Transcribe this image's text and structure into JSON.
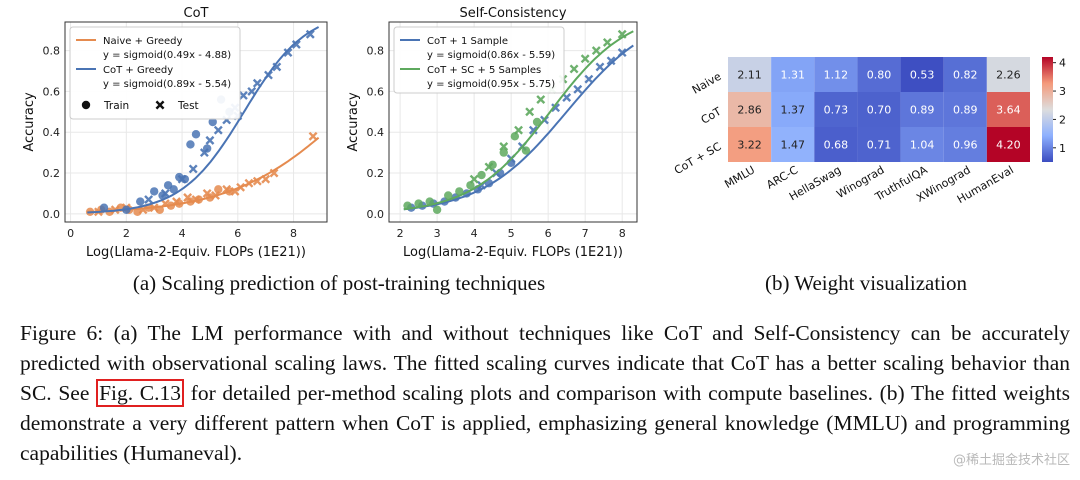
{
  "chart_data": [
    {
      "type": "scatter",
      "title": "CoT",
      "xlabel": "Log(Llama-2-Equiv. FLOPs (1E21))",
      "ylabel": "Accuracy",
      "xlim": [
        -0.2,
        9.2
      ],
      "ylim": [
        -0.04,
        0.94
      ],
      "xticks": [
        0,
        2,
        4,
        6,
        8
      ],
      "yticks": [
        0.0,
        0.2,
        0.4,
        0.6,
        0.8
      ],
      "legend_position": "top-left",
      "marker_legend": {
        "train": "Train",
        "test": "Test"
      },
      "series": [
        {
          "name": "Naive + Greedy",
          "fit_label": "y = sigmoid(0.49x - 4.88)",
          "color": "#e58b4f",
          "fit": {
            "a": 0.49,
            "b": -4.88,
            "x": [
              0.6,
              8.9
            ]
          },
          "train": [
            [
              0.7,
              0.01
            ],
            [
              1.1,
              0.02
            ],
            [
              1.4,
              0.01
            ],
            [
              1.8,
              0.03
            ],
            [
              2.1,
              0.02
            ],
            [
              2.4,
              0.01
            ],
            [
              2.8,
              0.03
            ],
            [
              3.2,
              0.02
            ],
            [
              3.6,
              0.04
            ],
            [
              3.9,
              0.05
            ],
            [
              4.3,
              0.06
            ],
            [
              4.6,
              0.07
            ],
            [
              5.0,
              0.08
            ],
            [
              5.3,
              0.12
            ],
            [
              5.7,
              0.11
            ]
          ],
          "test": [
            [
              1.0,
              0.01
            ],
            [
              1.6,
              0.02
            ],
            [
              2.0,
              0.03
            ],
            [
              2.6,
              0.02
            ],
            [
              3.0,
              0.03
            ],
            [
              3.4,
              0.05
            ],
            [
              3.8,
              0.06
            ],
            [
              4.2,
              0.08
            ],
            [
              4.5,
              0.07
            ],
            [
              4.9,
              0.1
            ],
            [
              5.2,
              0.09
            ],
            [
              5.6,
              0.12
            ],
            [
              5.9,
              0.11
            ],
            [
              6.1,
              0.13
            ],
            [
              6.4,
              0.15
            ],
            [
              6.7,
              0.16
            ],
            [
              7.0,
              0.17
            ],
            [
              7.3,
              0.2
            ],
            [
              8.7,
              0.38
            ]
          ]
        },
        {
          "name": "CoT + Greedy",
          "fit_label": "y = sigmoid(0.89x - 5.54)",
          "color": "#4a74b4",
          "fit": {
            "a": 0.89,
            "b": -5.54,
            "x": [
              0.6,
              8.9
            ]
          },
          "train": [
            [
              1.2,
              0.03
            ],
            [
              2.0,
              0.02
            ],
            [
              2.5,
              0.06
            ],
            [
              3.0,
              0.11
            ],
            [
              3.3,
              0.09
            ],
            [
              3.5,
              0.14
            ],
            [
              3.7,
              0.12
            ],
            [
              3.9,
              0.18
            ],
            [
              4.1,
              0.17
            ],
            [
              4.3,
              0.34
            ],
            [
              4.5,
              0.39
            ],
            [
              4.9,
              0.32
            ],
            [
              5.1,
              0.45
            ],
            [
              5.4,
              0.56
            ],
            [
              5.7,
              0.5
            ]
          ],
          "test": [
            [
              2.8,
              0.07
            ],
            [
              3.4,
              0.1
            ],
            [
              4.0,
              0.17
            ],
            [
              4.4,
              0.22
            ],
            [
              4.8,
              0.3
            ],
            [
              5.0,
              0.36
            ],
            [
              5.3,
              0.41
            ],
            [
              5.6,
              0.46
            ],
            [
              5.9,
              0.52
            ],
            [
              6.0,
              0.48
            ],
            [
              6.2,
              0.58
            ],
            [
              6.5,
              0.6
            ],
            [
              6.7,
              0.64
            ],
            [
              7.1,
              0.68
            ],
            [
              7.4,
              0.72
            ],
            [
              7.8,
              0.79
            ],
            [
              8.1,
              0.83
            ],
            [
              8.6,
              0.88
            ]
          ]
        }
      ]
    },
    {
      "type": "scatter",
      "title": "Self-Consistency",
      "xlabel": "Log(Llama-2-Equiv. FLOPs (1E21))",
      "ylabel": "Accuracy",
      "xlim": [
        1.7,
        8.4
      ],
      "ylim": [
        -0.04,
        0.94
      ],
      "xticks": [
        2,
        3,
        4,
        5,
        6,
        7,
        8
      ],
      "yticks": [
        0.0,
        0.2,
        0.4,
        0.6,
        0.8
      ],
      "legend_position": "top-left",
      "series": [
        {
          "name": "CoT + 1 Sample",
          "fit_label": "y = sigmoid(0.86x - 5.59)",
          "color": "#4a74b4",
          "fit": {
            "a": 0.86,
            "b": -5.59,
            "x": [
              2.1,
              8.3
            ]
          },
          "train": [
            [
              2.3,
              0.03
            ],
            [
              2.6,
              0.04
            ],
            [
              2.9,
              0.05
            ],
            [
              3.2,
              0.06
            ],
            [
              3.5,
              0.08
            ],
            [
              3.8,
              0.1
            ],
            [
              4.1,
              0.12
            ],
            [
              4.4,
              0.15
            ],
            [
              4.7,
              0.2
            ],
            [
              5.0,
              0.25
            ]
          ],
          "test": [
            [
              4.2,
              0.14
            ],
            [
              4.6,
              0.2
            ],
            [
              5.0,
              0.27
            ],
            [
              5.3,
              0.33
            ],
            [
              5.6,
              0.41
            ],
            [
              5.9,
              0.46
            ],
            [
              6.2,
              0.52
            ],
            [
              6.5,
              0.57
            ],
            [
              6.8,
              0.61
            ],
            [
              7.1,
              0.66
            ],
            [
              7.4,
              0.72
            ],
            [
              7.7,
              0.75
            ],
            [
              8.0,
              0.79
            ]
          ]
        },
        {
          "name": "CoT + SC + 5 Samples",
          "fit_label": "y = sigmoid(0.95x - 5.75)",
          "color": "#5ea95e",
          "fit": {
            "a": 0.95,
            "b": -5.75,
            "x": [
              2.1,
              8.3
            ]
          },
          "train": [
            [
              2.2,
              0.04
            ],
            [
              2.5,
              0.05
            ],
            [
              2.8,
              0.06
            ],
            [
              3.0,
              0.02
            ],
            [
              3.3,
              0.09
            ],
            [
              3.6,
              0.11
            ],
            [
              3.9,
              0.14
            ],
            [
              4.2,
              0.19
            ],
            [
              4.5,
              0.24
            ],
            [
              4.8,
              0.3
            ],
            [
              5.1,
              0.38
            ],
            [
              5.4,
              0.31
            ],
            [
              5.7,
              0.45
            ]
          ],
          "test": [
            [
              4.0,
              0.17
            ],
            [
              4.4,
              0.23
            ],
            [
              4.8,
              0.33
            ],
            [
              5.2,
              0.41
            ],
            [
              5.5,
              0.5
            ],
            [
              5.8,
              0.56
            ],
            [
              6.1,
              0.61
            ],
            [
              6.4,
              0.66
            ],
            [
              6.7,
              0.71
            ],
            [
              7.0,
              0.76
            ],
            [
              7.3,
              0.8
            ],
            [
              7.6,
              0.84
            ],
            [
              8.0,
              0.88
            ]
          ]
        }
      ]
    },
    {
      "type": "heatmap",
      "rows": [
        "Naive",
        "CoT",
        "CoT + SC"
      ],
      "columns": [
        "MMLU",
        "ARC-C",
        "HellaSwag",
        "Winograd",
        "TruthfulQA",
        "XWinograd",
        "HumanEval"
      ],
      "values": [
        [
          2.11,
          1.31,
          1.12,
          0.8,
          0.53,
          0.82,
          2.26
        ],
        [
          2.86,
          1.37,
          0.73,
          0.7,
          0.89,
          0.89,
          3.64
        ],
        [
          3.22,
          1.47,
          0.68,
          0.71,
          1.04,
          0.96,
          4.2
        ]
      ],
      "colorbar_range": [
        0.5,
        4.2
      ],
      "colorbar_ticks": [
        1,
        2,
        3,
        4
      ],
      "colormap": "coolwarm"
    }
  ],
  "subcaptions": {
    "a": "(a) Scaling prediction of post-training techniques",
    "b": "(b) Weight visualization"
  },
  "caption": {
    "part1": "Figure 6: (a) The LM performance with and without techniques like CoT and Self-Consistency can be accurately predicted with observational scaling laws. The fitted scaling curves indicate that CoT has a better scaling behavior than SC. See ",
    "ref": "Fig. C.13",
    "part2": " for detailed per-method scaling plots and comparison with compute baselines. (b) The fitted weights demonstrate a very different pattern when CoT is applied, emphasizing general knowledge (MMLU) and programming capabilities (Humaneval)."
  },
  "watermark": "@稀土掘金技术社区"
}
